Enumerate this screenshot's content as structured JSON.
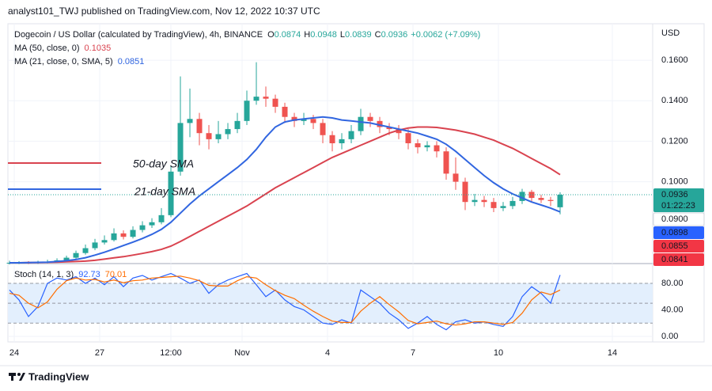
{
  "header": {
    "text": "analyst101_TWJ published on TradingView.com, Nov 12, 2022 10:37 UTC"
  },
  "footer": {
    "brand": "TradingView"
  },
  "chart_data": [
    {
      "type": "candlestick",
      "title": "Dogecoin / US Dollar (calculated by TradingView), 4h, BINANCE",
      "ohlc_letters": [
        "O",
        "H",
        "L",
        "C"
      ],
      "change_label": "+0.0062 (+7.09%)",
      "currency": "USD",
      "countdown": "01:22:23",
      "up_color": "#26a69a",
      "down_color": "#ef5350",
      "open": [
        0.0598,
        0.06,
        0.0601,
        0.06,
        0.0602,
        0.0605,
        0.0612,
        0.0625,
        0.0648,
        0.0672,
        0.07,
        0.0712,
        0.0745,
        0.0728,
        0.0762,
        0.0785,
        0.08,
        0.0835,
        0.105,
        0.129,
        0.131,
        0.124,
        0.121,
        0.1235,
        0.126,
        0.13,
        0.14,
        0.142,
        0.141,
        0.137,
        0.132,
        0.13,
        0.131,
        0.129,
        0.123,
        0.119,
        0.121,
        0.125,
        0.132,
        0.13,
        0.127,
        0.126,
        0.124,
        0.119,
        0.117,
        0.118,
        0.115,
        0.104,
        0.1,
        0.09,
        0.091,
        0.09,
        0.087,
        0.088,
        0.0905,
        0.095,
        0.092,
        0.091,
        0.0874
      ],
      "high": [
        0.061,
        0.0608,
        0.0608,
        0.061,
        0.0615,
        0.0622,
        0.0635,
        0.066,
        0.069,
        0.0718,
        0.0735,
        0.077,
        0.076,
        0.078,
        0.0805,
        0.082,
        0.087,
        0.108,
        0.152,
        0.146,
        0.134,
        0.128,
        0.13,
        0.129,
        0.134,
        0.145,
        0.159,
        0.147,
        0.143,
        0.139,
        0.134,
        0.134,
        0.133,
        0.131,
        0.125,
        0.124,
        0.128,
        0.136,
        0.134,
        0.132,
        0.129,
        0.128,
        0.126,
        0.121,
        0.12,
        0.12,
        0.117,
        0.112,
        0.102,
        0.094,
        0.093,
        0.092,
        0.09,
        0.0925,
        0.0965,
        0.096,
        0.0935,
        0.0925,
        0.0948
      ],
      "low": [
        0.0592,
        0.0594,
        0.0594,
        0.0595,
        0.0597,
        0.06,
        0.0605,
        0.0618,
        0.064,
        0.0662,
        0.069,
        0.0705,
        0.0715,
        0.072,
        0.075,
        0.0772,
        0.079,
        0.0825,
        0.103,
        0.122,
        0.118,
        0.116,
        0.119,
        0.121,
        0.124,
        0.128,
        0.138,
        0.137,
        0.134,
        0.129,
        0.127,
        0.128,
        0.126,
        0.119,
        0.115,
        0.116,
        0.119,
        0.123,
        0.127,
        0.124,
        0.123,
        0.121,
        0.116,
        0.114,
        0.115,
        0.112,
        0.101,
        0.096,
        0.086,
        0.088,
        0.0875,
        0.085,
        0.0855,
        0.0865,
        0.089,
        0.09,
        0.0895,
        0.088,
        0.0839
      ],
      "close": [
        0.06,
        0.0601,
        0.06,
        0.0602,
        0.0605,
        0.0612,
        0.0625,
        0.0648,
        0.0672,
        0.07,
        0.0712,
        0.0745,
        0.0728,
        0.0762,
        0.0785,
        0.08,
        0.0835,
        0.105,
        0.129,
        0.131,
        0.124,
        0.121,
        0.1235,
        0.126,
        0.13,
        0.14,
        0.142,
        0.141,
        0.137,
        0.132,
        0.13,
        0.131,
        0.129,
        0.123,
        0.119,
        0.121,
        0.125,
        0.132,
        0.13,
        0.127,
        0.126,
        0.124,
        0.119,
        0.117,
        0.118,
        0.115,
        0.104,
        0.1,
        0.09,
        0.091,
        0.09,
        0.087,
        0.088,
        0.0905,
        0.095,
        0.092,
        0.091,
        0.0905,
        0.0936
      ],
      "series": [
        {
          "name": "MA (50, close, 0)",
          "color": "#d9434f",
          "values": [
            0.06,
            0.06,
            0.0601,
            0.0601,
            0.0602,
            0.0603,
            0.0605,
            0.0606,
            0.0608,
            0.0612,
            0.0618,
            0.0624,
            0.063,
            0.0638,
            0.0646,
            0.0655,
            0.0666,
            0.0682,
            0.0705,
            0.073,
            0.0755,
            0.078,
            0.0805,
            0.083,
            0.0855,
            0.088,
            0.091,
            0.094,
            0.097,
            0.0995,
            0.102,
            0.1045,
            0.107,
            0.1095,
            0.112,
            0.114,
            0.116,
            0.118,
            0.12,
            0.122,
            0.124,
            0.1255,
            0.1265,
            0.127,
            0.127,
            0.1268,
            0.1262,
            0.1255,
            0.1245,
            0.1235,
            0.122,
            0.1205,
            0.1185,
            0.1165,
            0.114,
            0.1115,
            0.109,
            0.1065,
            0.1035
          ]
        },
        {
          "name": "MA (21, close, 0, SMA, 5)",
          "color": "#3166e0",
          "values": [
            0.06,
            0.06,
            0.0601,
            0.0602,
            0.0603,
            0.0606,
            0.061,
            0.0616,
            0.0625,
            0.0638,
            0.0652,
            0.0668,
            0.0685,
            0.0702,
            0.072,
            0.074,
            0.0765,
            0.08,
            0.0845,
            0.089,
            0.093,
            0.0965,
            0.1,
            0.1035,
            0.107,
            0.111,
            0.116,
            0.122,
            0.127,
            0.1295,
            0.1305,
            0.131,
            0.1315,
            0.132,
            0.1315,
            0.1305,
            0.13,
            0.1295,
            0.129,
            0.128,
            0.127,
            0.126,
            0.125,
            0.124,
            0.1225,
            0.121,
            0.1185,
            0.115,
            0.111,
            0.107,
            0.103,
            0.0995,
            0.0965,
            0.094,
            0.092,
            0.09,
            0.0885,
            0.087,
            0.0851
          ]
        }
      ],
      "annotations": [
        {
          "text": "50-day SMA",
          "color": "#d9434f"
        },
        {
          "text": "21-day SMA",
          "color": "#3166e0"
        }
      ],
      "price_badges": [
        {
          "value": 0.09,
          "label": "0.0900",
          "color": "#ffffff"
        },
        {
          "value": 0.0898,
          "label": "0.0898",
          "color": "#2962ff"
        },
        {
          "value": 0.0855,
          "label": "0.0855",
          "color": "#f23645"
        },
        {
          "value": 0.0841,
          "label": "0.0841",
          "color": "#f23645"
        }
      ],
      "xlim": [
        -0.17,
        67.75
      ],
      "xticks": [
        {
          "value": 0.5,
          "label": "24"
        },
        {
          "value": 9.5,
          "label": "27"
        },
        {
          "value": 17,
          "label": "12:00"
        },
        {
          "value": 24.5,
          "label": "Nov"
        },
        {
          "value": 33.5,
          "label": "4"
        },
        {
          "value": 42.5,
          "label": "7"
        },
        {
          "value": 51.5,
          "label": "10"
        },
        {
          "value": 63.5,
          "label": "14"
        }
      ],
      "ylim": [
        0.0596,
        0.178
      ],
      "yticks": [
        {
          "value": 0.1,
          "label": "0.1000"
        },
        {
          "value": 0.12,
          "label": "0.1200"
        },
        {
          "value": 0.14,
          "label": "0.1400"
        },
        {
          "value": 0.16,
          "label": "0.1600"
        }
      ],
      "grid": true
    },
    {
      "type": "line",
      "title": "Stoch (14, 1, 3)",
      "series": [
        {
          "color": "#2962ff",
          "values": [
            70,
            55,
            30,
            45,
            80,
            88,
            85,
            90,
            80,
            88,
            78,
            90,
            75,
            88,
            92,
            85,
            90,
            95,
            88,
            80,
            85,
            65,
            78,
            85,
            90,
            95,
            78,
            60,
            70,
            55,
            45,
            40,
            30,
            20,
            18,
            25,
            20,
            70,
            60,
            50,
            35,
            25,
            12,
            20,
            30,
            18,
            10,
            22,
            25,
            20,
            22,
            18,
            15,
            30,
            60,
            75,
            65,
            50,
            92.73
          ]
        },
        {
          "color": "#ff6d00",
          "values": [
            65,
            62,
            50,
            43,
            52,
            71,
            84,
            88,
            85,
            86,
            82,
            85,
            81,
            84,
            85,
            88,
            89,
            90,
            91,
            88,
            84,
            77,
            76,
            76,
            84,
            90,
            88,
            78,
            69,
            62,
            57,
            47,
            38,
            30,
            23,
            21,
            21,
            38,
            50,
            60,
            48,
            37,
            24,
            19,
            21,
            23,
            19,
            17,
            19,
            22,
            22,
            20,
            18,
            21,
            35,
            55,
            67,
            63,
            70.01
          ]
        }
      ],
      "band": [
        20,
        80
      ],
      "band_color": "#e3effd",
      "levels": [
        20,
        50,
        80
      ],
      "ylim": [
        -8.4,
        107.5
      ],
      "yticks": [
        {
          "value": 0,
          "label": "0.00"
        },
        {
          "value": 40,
          "label": "40.00"
        },
        {
          "value": 80,
          "label": "80.00"
        }
      ],
      "grid": true
    }
  ]
}
